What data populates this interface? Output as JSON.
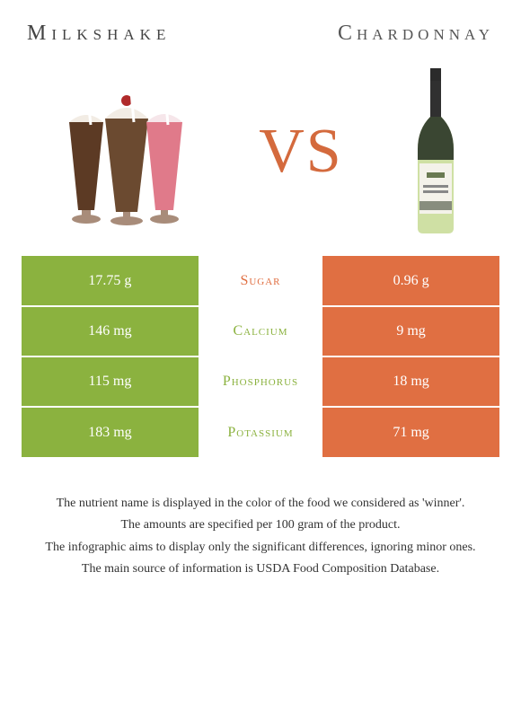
{
  "titles": {
    "left": "Milkshake",
    "right": "Chardonnay"
  },
  "vs_label": "VS",
  "vs_color": "#d46a3d",
  "colors": {
    "left_bg": "#8bb23f",
    "right_bg": "#e06f42",
    "mid_text_left_winner": "#e06f42",
    "text_white": "#ffffff"
  },
  "milkshake_svg": {
    "cup_outline": "#a88c7a",
    "shake_colors": [
      "#5c3a24",
      "#6b4a30",
      "#e07a8a"
    ],
    "cream_color": "#f2ece4",
    "cherry_color": "#b02a2a",
    "straw_color": "#ffffff",
    "straw_stroke": "#dddddd"
  },
  "bottle_svg": {
    "cap_color": "#2b2b2b",
    "neck_color": "#303030",
    "body_top_color": "#3a4632",
    "body_bottom_color": "#cfe0a4",
    "label_bg": "#f4f2ea",
    "label_accent": "#6a7a52",
    "label_band": "#888d7e"
  },
  "rows": [
    {
      "nutrient": "Sugar",
      "nutrient_color": "#e06f42",
      "left_value": "17.75 g",
      "right_value": "0.96 g"
    },
    {
      "nutrient": "Calcium",
      "nutrient_color": "#8bb23f",
      "left_value": "146 mg",
      "right_value": "9 mg"
    },
    {
      "nutrient": "Phosphorus",
      "nutrient_color": "#8bb23f",
      "left_value": "115 mg",
      "right_value": "18 mg"
    },
    {
      "nutrient": "Potassium",
      "nutrient_color": "#8bb23f",
      "left_value": "183 mg",
      "right_value": "71 mg"
    }
  ],
  "notes": [
    "The nutrient name is displayed in the color of the food we considered as 'winner'.",
    "The amounts are specified per 100 gram of the product.",
    "The infographic aims to display only the significant differences, ignoring minor ones.",
    "The main source of information is USDA Food Composition Database."
  ]
}
